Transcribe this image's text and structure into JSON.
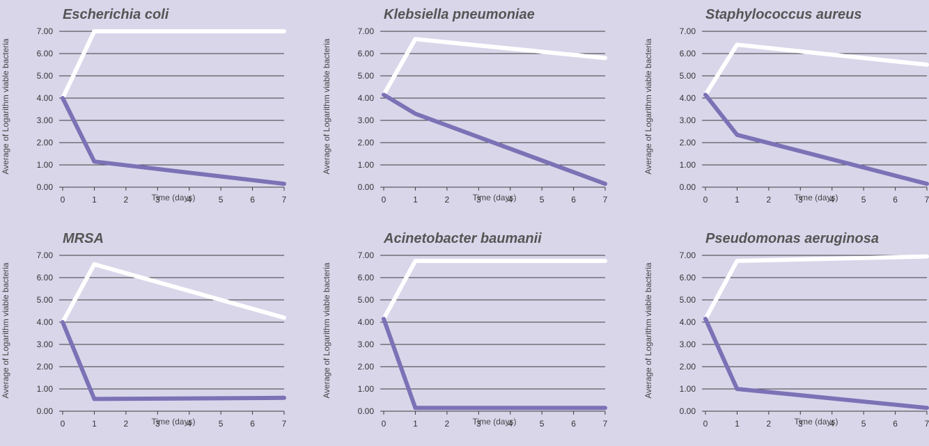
{
  "chart_data": [
    {
      "type": "line",
      "title": "Escherichia coli",
      "xlabel": "Time (days)",
      "ylabel": "Average of Logarithm viable bacteria",
      "x": [
        0,
        1,
        7
      ],
      "xticks": [
        "0",
        "1",
        "2",
        "3",
        "4",
        "5",
        "6",
        "7"
      ],
      "yticks": [
        "0.00",
        "1.00",
        "2.00",
        "3.00",
        "4.00",
        "5.00",
        "6.00",
        "7.00"
      ],
      "xlim": [
        0,
        7
      ],
      "ylim": [
        0,
        7
      ],
      "grid": "horizontal",
      "series": [
        {
          "color": "#ffffff",
          "values": [
            4.0,
            7.0,
            7.0
          ]
        },
        {
          "color": "#7b72b6",
          "values": [
            4.0,
            1.15,
            0.15
          ]
        }
      ]
    },
    {
      "type": "line",
      "title": "Klebsiella pneumoniae",
      "xlabel": "Time (days)",
      "ylabel": "Average of Logarithm viable bacteria",
      "x": [
        0,
        1,
        7
      ],
      "xticks": [
        "0",
        "1",
        "2",
        "3",
        "4",
        "5",
        "6",
        "7"
      ],
      "yticks": [
        "0.00",
        "1.00",
        "2.00",
        "3.00",
        "4.00",
        "5.00",
        "6.00",
        "7.00"
      ],
      "xlim": [
        0,
        7
      ],
      "ylim": [
        0,
        7
      ],
      "grid": "horizontal",
      "series": [
        {
          "color": "#ffffff",
          "values": [
            4.15,
            6.65,
            5.8
          ]
        },
        {
          "color": "#7b72b6",
          "values": [
            4.15,
            3.3,
            0.15
          ]
        }
      ]
    },
    {
      "type": "line",
      "title": "Staphylococcus aureus",
      "xlabel": "Time (days)",
      "ylabel": "Average of Logarithm viable bacteria",
      "x": [
        0,
        1,
        7
      ],
      "xticks": [
        "0",
        "1",
        "2",
        "3",
        "4",
        "5",
        "6",
        "7"
      ],
      "yticks": [
        "0.00",
        "1.00",
        "2.00",
        "3.00",
        "4.00",
        "5.00",
        "6.00",
        "7.00"
      ],
      "xlim": [
        0,
        7
      ],
      "ylim": [
        0,
        7
      ],
      "grid": "horizontal",
      "series": [
        {
          "color": "#ffffff",
          "values": [
            4.15,
            6.4,
            5.5
          ]
        },
        {
          "color": "#7b72b6",
          "values": [
            4.15,
            2.35,
            0.15
          ]
        }
      ]
    },
    {
      "type": "line",
      "title": "MRSA",
      "xlabel": "Time (days)",
      "ylabel": "Average of Logarithm viable bacteria",
      "x": [
        0,
        1,
        7
      ],
      "xticks": [
        "0",
        "1",
        "2",
        "3",
        "4",
        "5",
        "6",
        "7"
      ],
      "yticks": [
        "0.00",
        "1.00",
        "2.00",
        "3.00",
        "4.00",
        "5.00",
        "6.00",
        "7.00"
      ],
      "xlim": [
        0,
        7
      ],
      "ylim": [
        0,
        7
      ],
      "grid": "horizontal",
      "series": [
        {
          "color": "#ffffff",
          "values": [
            4.0,
            6.6,
            4.2
          ]
        },
        {
          "color": "#7b72b6",
          "values": [
            4.0,
            0.55,
            0.6
          ]
        }
      ]
    },
    {
      "type": "line",
      "title": "Acinetobacter baumanii",
      "xlabel": "Time (days)",
      "ylabel": "Average of Logarithm viable bacteria",
      "x": [
        0,
        1,
        7
      ],
      "xticks": [
        "0",
        "1",
        "2",
        "3",
        "4",
        "5",
        "6",
        "7"
      ],
      "yticks": [
        "0.00",
        "1.00",
        "2.00",
        "3.00",
        "4.00",
        "5.00",
        "6.00",
        "7.00"
      ],
      "xlim": [
        0,
        7
      ],
      "ylim": [
        0,
        7
      ],
      "grid": "horizontal",
      "series": [
        {
          "color": "#ffffff",
          "values": [
            4.15,
            6.75,
            6.75
          ]
        },
        {
          "color": "#7b72b6",
          "values": [
            4.15,
            0.15,
            0.15
          ]
        }
      ]
    },
    {
      "type": "line",
      "title": "Pseudomonas aeruginosa",
      "xlabel": "Time (days)",
      "ylabel": "Average of Logarithm viable bacteria",
      "x": [
        0,
        1,
        7
      ],
      "xticks": [
        "0",
        "1",
        "2",
        "3",
        "4",
        "5",
        "6",
        "7"
      ],
      "yticks": [
        "0.00",
        "1.00",
        "2.00",
        "3.00",
        "4.00",
        "5.00",
        "6.00",
        "7.00"
      ],
      "xlim": [
        0,
        7
      ],
      "ylim": [
        0,
        7
      ],
      "grid": "horizontal",
      "series": [
        {
          "color": "#ffffff",
          "values": [
            4.15,
            6.75,
            6.95
          ]
        },
        {
          "color": "#7b72b6",
          "values": [
            4.15,
            1.0,
            0.15
          ]
        }
      ]
    }
  ]
}
